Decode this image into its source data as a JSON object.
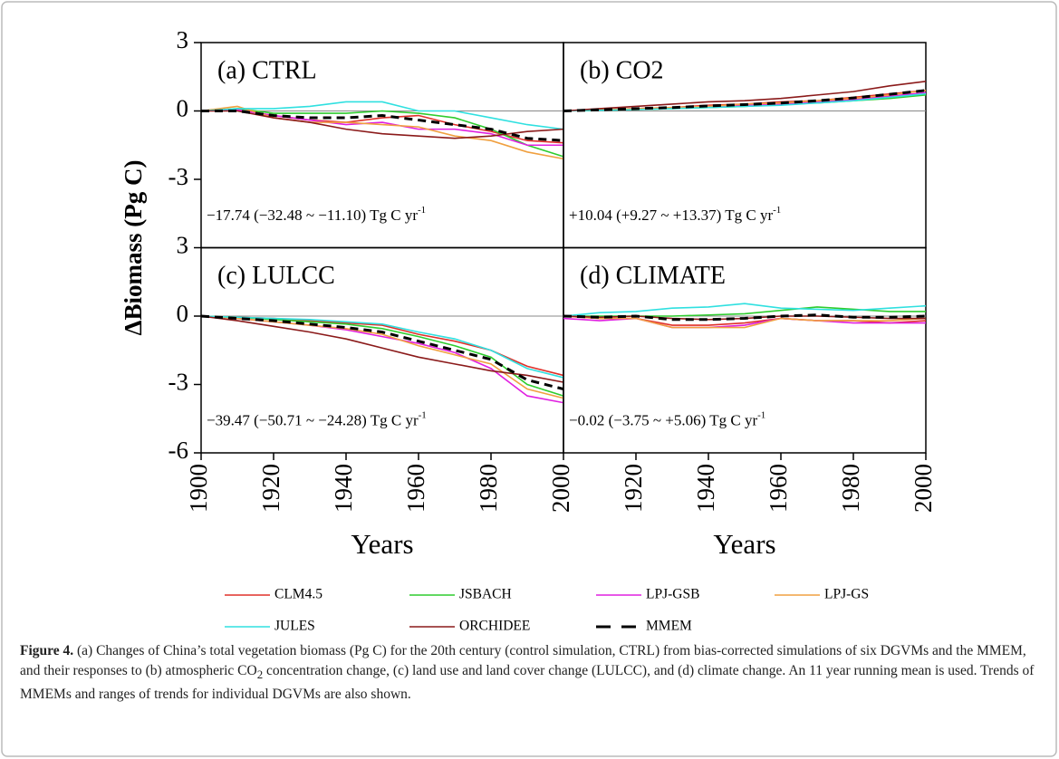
{
  "chart_data": [
    {
      "type": "line",
      "title": "(a) CTRL",
      "ylabel": "ΔBiomass (Pg C)",
      "annotation": {
        "text": "−17.74 (−32.48 ~ −11.10) Tg C yr",
        "sup": "-1"
      },
      "xlim": [
        1900,
        2000
      ],
      "ylim": [
        -6,
        3
      ],
      "yticks": [
        3,
        0,
        -3
      ],
      "x": [
        1900,
        1910,
        1920,
        1930,
        1940,
        1950,
        1960,
        1970,
        1980,
        1990,
        2000
      ],
      "series": [
        {
          "name": "CLM4.5",
          "color": "#e0302a",
          "values": [
            0,
            0.05,
            -0.2,
            -0.4,
            -0.5,
            -0.3,
            -0.2,
            -0.6,
            -0.9,
            -1.3,
            -1.4
          ]
        },
        {
          "name": "JSBACH",
          "color": "#2ecc2e",
          "values": [
            0,
            0.1,
            -0.1,
            -0.1,
            -0.1,
            0,
            -0.1,
            -0.3,
            -0.8,
            -1.5,
            -2.0
          ]
        },
        {
          "name": "LPJ-GSB",
          "color": "#e020e0",
          "values": [
            0,
            0.05,
            -0.2,
            -0.4,
            -0.6,
            -0.5,
            -0.8,
            -0.8,
            -1.0,
            -1.5,
            -1.5
          ]
        },
        {
          "name": "LPJ-GS",
          "color": "#f0a040",
          "values": [
            0,
            0.2,
            -0.3,
            -0.5,
            -0.5,
            -0.6,
            -0.7,
            -1.1,
            -1.3,
            -1.8,
            -2.1
          ]
        },
        {
          "name": "JULES",
          "color": "#30e0e0",
          "values": [
            0,
            0.1,
            0.1,
            0.2,
            0.4,
            0.4,
            0,
            0,
            -0.3,
            -0.6,
            -0.8
          ]
        },
        {
          "name": "ORCHIDEE",
          "color": "#8b1a1a",
          "values": [
            0,
            0,
            -0.3,
            -0.5,
            -0.8,
            -1.0,
            -1.1,
            -1.2,
            -1.1,
            -0.9,
            -0.8
          ]
        },
        {
          "name": "MMEM",
          "color": "#000000",
          "linestyle": "dashed",
          "values": [
            0,
            0,
            -0.2,
            -0.3,
            -0.3,
            -0.2,
            -0.4,
            -0.6,
            -0.8,
            -1.2,
            -1.3
          ]
        }
      ]
    },
    {
      "type": "line",
      "title": "(b) CO2",
      "annotation": {
        "text": "+10.04 (+9.27 ~ +13.37) Tg C yr",
        "sup": "-1"
      },
      "xlim": [
        1900,
        2000
      ],
      "ylim": [
        -6,
        3
      ],
      "x": [
        1900,
        1910,
        1920,
        1930,
        1940,
        1950,
        1960,
        1970,
        1980,
        1990,
        2000
      ],
      "series": [
        {
          "name": "CLM4.5",
          "color": "#e0302a",
          "values": [
            0,
            0.05,
            0.1,
            0.15,
            0.25,
            0.3,
            0.4,
            0.45,
            0.6,
            0.75,
            0.9
          ]
        },
        {
          "name": "JSBACH",
          "color": "#2ecc2e",
          "values": [
            0,
            0.03,
            0.06,
            0.1,
            0.15,
            0.2,
            0.3,
            0.35,
            0.45,
            0.55,
            0.7
          ]
        },
        {
          "name": "LPJ-GSB",
          "color": "#e020e0",
          "values": [
            0,
            0.05,
            0.1,
            0.15,
            0.2,
            0.25,
            0.3,
            0.4,
            0.5,
            0.65,
            0.8
          ]
        },
        {
          "name": "LPJ-GS",
          "color": "#f0a040",
          "values": [
            0,
            0.05,
            0.1,
            0.15,
            0.2,
            0.3,
            0.35,
            0.45,
            0.55,
            0.7,
            0.9
          ]
        },
        {
          "name": "JULES",
          "color": "#30e0e0",
          "values": [
            0,
            0.03,
            0.06,
            0.1,
            0.15,
            0.2,
            0.25,
            0.35,
            0.45,
            0.6,
            0.75
          ]
        },
        {
          "name": "ORCHIDEE",
          "color": "#8b1a1a",
          "values": [
            0,
            0.1,
            0.2,
            0.3,
            0.4,
            0.45,
            0.55,
            0.7,
            0.85,
            1.1,
            1.3
          ]
        },
        {
          "name": "MMEM",
          "color": "#000000",
          "linestyle": "dashed",
          "values": [
            0,
            0.05,
            0.1,
            0.15,
            0.22,
            0.28,
            0.35,
            0.45,
            0.57,
            0.73,
            0.9
          ]
        }
      ]
    },
    {
      "type": "line",
      "title": "(c) LULCC",
      "xlabel": "Years",
      "annotation": {
        "text": "−39.47 (−50.71 ~ −24.28) Tg C yr",
        "sup": "-1"
      },
      "xlim": [
        1900,
        2000
      ],
      "ylim": [
        -6,
        3
      ],
      "yticks": [
        3,
        0,
        -3,
        -6
      ],
      "xticks": [
        1900,
        1920,
        1940,
        1960,
        1980,
        2000
      ],
      "x": [
        1900,
        1910,
        1920,
        1930,
        1940,
        1950,
        1960,
        1970,
        1980,
        1990,
        2000
      ],
      "series": [
        {
          "name": "CLM4.5",
          "color": "#e0302a",
          "values": [
            0,
            -0.05,
            -0.1,
            -0.2,
            -0.3,
            -0.4,
            -0.8,
            -1.1,
            -1.5,
            -2.2,
            -2.6
          ]
        },
        {
          "name": "JSBACH",
          "color": "#2ecc2e",
          "values": [
            0,
            -0.05,
            -0.15,
            -0.25,
            -0.35,
            -0.55,
            -0.9,
            -1.3,
            -1.8,
            -3.0,
            -3.5
          ]
        },
        {
          "name": "LPJ-GSB",
          "color": "#e020e0",
          "values": [
            0,
            -0.1,
            -0.25,
            -0.4,
            -0.6,
            -0.9,
            -1.2,
            -1.6,
            -2.3,
            -3.5,
            -3.8
          ]
        },
        {
          "name": "LPJ-GS",
          "color": "#f0a040",
          "values": [
            0,
            -0.1,
            -0.25,
            -0.4,
            -0.55,
            -0.8,
            -1.3,
            -1.7,
            -2.1,
            -3.2,
            -3.6
          ]
        },
        {
          "name": "JULES",
          "color": "#30e0e0",
          "values": [
            0,
            -0.05,
            -0.1,
            -0.15,
            -0.25,
            -0.35,
            -0.7,
            -1.0,
            -1.5,
            -2.3,
            -2.7
          ]
        },
        {
          "name": "ORCHIDEE",
          "color": "#8b1a1a",
          "values": [
            0,
            -0.2,
            -0.45,
            -0.7,
            -1.0,
            -1.4,
            -1.8,
            -2.1,
            -2.4,
            -2.6,
            -2.9
          ]
        },
        {
          "name": "MMEM",
          "color": "#000000",
          "linestyle": "dashed",
          "values": [
            0,
            -0.1,
            -0.2,
            -0.35,
            -0.5,
            -0.7,
            -1.1,
            -1.5,
            -1.9,
            -2.8,
            -3.2
          ]
        }
      ]
    },
    {
      "type": "line",
      "title": "(d) CLIMATE",
      "xlabel": "Years",
      "annotation": {
        "text": "−0.02 (−3.75 ~ +5.06) Tg C yr",
        "sup": "-1"
      },
      "xlim": [
        1900,
        2000
      ],
      "ylim": [
        -6,
        3
      ],
      "xticks": [
        1920,
        1940,
        1960,
        1980,
        2000
      ],
      "x": [
        1900,
        1910,
        1920,
        1930,
        1940,
        1950,
        1960,
        1970,
        1980,
        1990,
        2000
      ],
      "series": [
        {
          "name": "CLM4.5",
          "color": "#e0302a",
          "values": [
            0,
            -0.1,
            -0.1,
            -0.4,
            -0.4,
            -0.3,
            -0.1,
            -0.2,
            -0.2,
            -0.3,
            -0.2
          ]
        },
        {
          "name": "JSBACH",
          "color": "#2ecc2e",
          "values": [
            0,
            0,
            0,
            0,
            0.05,
            0.1,
            0.25,
            0.4,
            0.3,
            0.2,
            0.2
          ]
        },
        {
          "name": "LPJ-GSB",
          "color": "#e020e0",
          "values": [
            -0.1,
            -0.2,
            -0.1,
            -0.5,
            -0.5,
            -0.4,
            -0.1,
            -0.2,
            -0.3,
            -0.3,
            -0.3
          ]
        },
        {
          "name": "LPJ-GS",
          "color": "#f0a040",
          "values": [
            0,
            -0.1,
            -0.1,
            -0.5,
            -0.5,
            -0.5,
            -0.1,
            -0.2,
            -0.2,
            -0.2,
            -0.1
          ]
        },
        {
          "name": "JULES",
          "color": "#30e0e0",
          "values": [
            0,
            0.15,
            0.2,
            0.35,
            0.4,
            0.55,
            0.35,
            0.3,
            0.25,
            0.35,
            0.45
          ]
        },
        {
          "name": "ORCHIDEE",
          "color": "#8b1a1a",
          "values": [
            0,
            -0.05,
            0,
            -0.1,
            -0.15,
            -0.1,
            0,
            0,
            -0.05,
            -0.1,
            -0.1
          ]
        },
        {
          "name": "MMEM",
          "color": "#000000",
          "linestyle": "dashed",
          "values": [
            0,
            -0.05,
            0,
            -0.15,
            -0.15,
            -0.1,
            0,
            0.05,
            -0.05,
            -0.05,
            0
          ]
        }
      ]
    }
  ],
  "caption": {
    "label": "Figure 4.",
    "text_1": " (a) Changes of China’s total vegetation biomass (Pg C) for the 20th century (control simulation, CTRL) from bias-corrected simulations of six DGVMs and the MMEM, and their responses to (b) atmospheric CO",
    "sub": "2",
    "text_2": " concentration change, (c) land use and land cover change (LULCC), and (d) climate change. An 11 year running mean is used. Trends of MMEMs and ranges of trends for individual DGVMs are also shown."
  }
}
